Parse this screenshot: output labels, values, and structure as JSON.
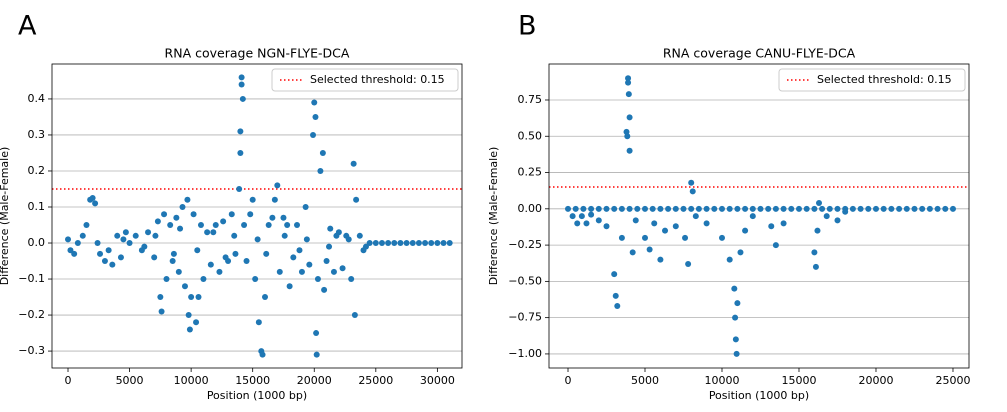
{
  "chart_data": [
    {
      "type": "scatter",
      "panel_label": "A",
      "title": "RNA coverage NGN-FLYE-DCA",
      "x_label": "Position (1000 bp)",
      "y_label": "Difference (Male-Female)",
      "xlim": [
        -1300,
        32000
      ],
      "ylim": [
        -0.347,
        0.497
      ],
      "xticks": [
        0,
        5000,
        10000,
        15000,
        20000,
        25000,
        30000
      ],
      "yticks": [
        {
          "value": -0.3,
          "label": "−0.3"
        },
        {
          "value": -0.2,
          "label": "−0.2"
        },
        {
          "value": -0.1,
          "label": "−0.1"
        },
        {
          "value": 0,
          "label": "0.0"
        },
        0.1,
        0.2,
        0.3,
        0.4
      ],
      "grid": true,
      "legend": "upper right",
      "threshold": {
        "name": "Selected threshold: 0.15",
        "value": 0.15,
        "color": "#ff0000"
      },
      "series": [
        {
          "color": "#1f77b4",
          "x": [
            0,
            200,
            500,
            800,
            1200,
            1500,
            1800,
            2000,
            2200,
            2400,
            2600,
            3000,
            3300,
            3600,
            4000,
            4300,
            4700,
            5000,
            5500,
            6000,
            6500,
            7000,
            7300,
            7500,
            7600,
            7800,
            8000,
            8300,
            8500,
            8800,
            9000,
            9300,
            9500,
            9700,
            9800,
            9900,
            10000,
            10200,
            10400,
            10600,
            10800,
            11000,
            11300,
            11600,
            12000,
            12300,
            12600,
            13000,
            13300,
            13600,
            13900,
            14000,
            14000,
            14100,
            14100,
            14200,
            14300,
            14500,
            14800,
            15000,
            15200,
            15500,
            15700,
            15800,
            16000,
            16300,
            16600,
            16800,
            17000,
            17200,
            17500,
            17800,
            18000,
            18300,
            18600,
            19000,
            19300,
            19600,
            19900,
            20000,
            20100,
            20150,
            20200,
            20300,
            20500,
            20700,
            20800,
            21000,
            21300,
            21600,
            22000,
            22300,
            22600,
            23000,
            23200,
            23300,
            23400,
            23700,
            24000,
            24500,
            25000,
            25500,
            26000,
            26500,
            27000,
            27500,
            28000,
            28500,
            29000,
            29500,
            30000,
            30500,
            31000,
            4500,
            6200,
            7100,
            8600,
            9100,
            10500,
            11800,
            12800,
            13500,
            15400,
            16100,
            17600,
            18800,
            19400,
            21200,
            21800,
            22800,
            24200
          ],
          "values": [
            0.01,
            -0.02,
            -0.03,
            0.0,
            0.02,
            0.05,
            0.12,
            0.125,
            0.11,
            0.0,
            -0.03,
            -0.05,
            -0.02,
            -0.06,
            0.02,
            -0.04,
            0.03,
            0.0,
            0.02,
            -0.02,
            0.03,
            -0.04,
            0.06,
            -0.15,
            -0.19,
            0.08,
            -0.1,
            0.05,
            -0.05,
            0.07,
            -0.08,
            0.1,
            -0.12,
            0.12,
            -0.2,
            -0.24,
            -0.15,
            0.08,
            -0.22,
            -0.15,
            0.05,
            -0.1,
            0.03,
            -0.06,
            0.05,
            -0.08,
            0.06,
            -0.05,
            0.08,
            -0.03,
            0.15,
            0.25,
            0.31,
            0.44,
            0.46,
            0.4,
            0.05,
            -0.05,
            0.08,
            0.12,
            -0.1,
            -0.22,
            -0.3,
            -0.31,
            -0.15,
            0.05,
            0.07,
            0.12,
            0.16,
            -0.08,
            0.07,
            0.05,
            -0.12,
            -0.04,
            0.05,
            -0.08,
            0.1,
            -0.06,
            0.3,
            0.39,
            0.35,
            -0.25,
            -0.31,
            -0.1,
            0.2,
            0.25,
            -0.13,
            -0.05,
            0.04,
            -0.08,
            0.03,
            -0.07,
            0.02,
            -0.1,
            0.22,
            -0.2,
            0.12,
            0.02,
            -0.02,
            0,
            0,
            0,
            0,
            0,
            0,
            0,
            0,
            0,
            0,
            0,
            0,
            0,
            0,
            0.01,
            -0.01,
            0.02,
            -0.03,
            0.04,
            -0.02,
            0.03,
            -0.04,
            0.02,
            0.01,
            -0.03,
            0.02,
            -0.02,
            0.01,
            -0.01,
            0.02,
            0.01,
            -0.01
          ]
        }
      ]
    },
    {
      "type": "scatter",
      "panel_label": "B",
      "title": "RNA coverage CANU-FLYE-DCA",
      "x_label": "Position (1000 bp)",
      "y_label": "Difference (Male-Female)",
      "xlim": [
        -1234,
        26040
      ],
      "ylim": [
        -1.097,
        0.998
      ],
      "xticks": [
        0,
        5000,
        10000,
        15000,
        20000,
        25000
      ],
      "yticks": [
        {
          "value": -1,
          "label": "−1.00"
        },
        {
          "value": -0.75,
          "label": "−0.75"
        },
        {
          "value": -0.5,
          "label": "−0.50"
        },
        {
          "value": -0.25,
          "label": "−0.25"
        },
        {
          "value": 0,
          "label": "0.00"
        },
        0.25,
        {
          "value": 0.5,
          "label": "0.50"
        },
        0.75
      ],
      "grid": true,
      "legend": "upper right",
      "threshold": {
        "name": "Selected threshold: 0.15",
        "value": 0.15,
        "color": "#ff0000"
      },
      "series": [
        {
          "color": "#1f77b4",
          "x": [
            0,
            500,
            1000,
            1500,
            2000,
            2500,
            3000,
            3500,
            4000,
            4500,
            5000,
            5500,
            6000,
            6500,
            7000,
            7500,
            8000,
            8500,
            9000,
            9500,
            10000,
            10500,
            11000,
            11500,
            12000,
            12500,
            13000,
            13500,
            14000,
            14500,
            15000,
            15500,
            16000,
            16500,
            17000,
            17500,
            18000,
            18500,
            19000,
            19500,
            20000,
            20500,
            21000,
            21500,
            22000,
            22500,
            23000,
            23500,
            24000,
            24500,
            25000,
            300,
            600,
            900,
            1200,
            1500,
            2000,
            2500,
            3000,
            3100,
            3200,
            3500,
            3800,
            3850,
            3900,
            3900,
            3950,
            4000,
            4000,
            4200,
            4400,
            5000,
            5300,
            5600,
            6000,
            6300,
            7000,
            7600,
            7800,
            8000,
            8100,
            8300,
            9000,
            10000,
            10500,
            10800,
            10850,
            10900,
            10950,
            11000,
            11200,
            11500,
            12000,
            13200,
            13500,
            14000,
            16000,
            16100,
            16200,
            16300,
            16800,
            17500,
            18000
          ],
          "values": [
            0,
            0,
            0,
            0,
            0,
            0,
            0,
            0,
            0,
            0,
            0,
            0,
            0,
            0,
            0,
            0,
            0,
            0,
            0,
            0,
            0,
            0,
            0,
            0,
            0,
            0,
            0,
            0,
            0,
            0,
            0,
            0,
            0,
            0,
            0,
            0,
            0,
            0,
            0,
            0,
            0,
            0,
            0,
            0,
            0,
            0,
            0,
            0,
            0,
            0,
            0,
            -0.05,
            -0.1,
            -0.05,
            -0.1,
            -0.04,
            -0.08,
            -0.12,
            -0.45,
            -0.6,
            -0.67,
            -0.2,
            0.53,
            0.5,
            0.9,
            0.87,
            0.79,
            0.63,
            0.4,
            -0.3,
            -0.08,
            -0.2,
            -0.28,
            -0.1,
            -0.35,
            -0.15,
            -0.12,
            -0.2,
            -0.38,
            0.18,
            0.12,
            -0.05,
            -0.1,
            -0.2,
            -0.35,
            -0.55,
            -0.75,
            -0.9,
            -1.0,
            -0.65,
            -0.3,
            -0.15,
            -0.05,
            -0.12,
            -0.25,
            -0.1,
            -0.3,
            -0.4,
            -0.15,
            0.04,
            -0.05,
            -0.08,
            -0.02
          ]
        }
      ]
    }
  ]
}
